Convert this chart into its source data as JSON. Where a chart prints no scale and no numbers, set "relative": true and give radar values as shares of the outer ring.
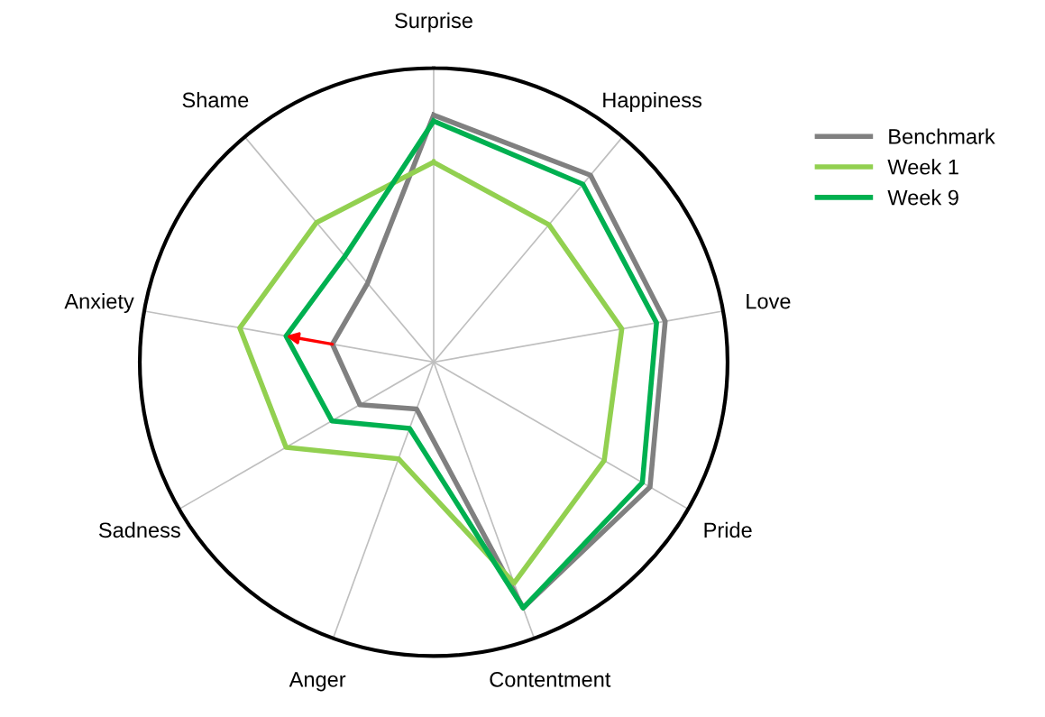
{
  "chart_data": {
    "type": "radar",
    "relative": true,
    "categories": [
      "Surprise",
      "Happiness",
      "Love",
      "Pride",
      "Contentment",
      "Anger",
      "Sadness",
      "Anxiety",
      "Shame"
    ],
    "series": [
      {
        "name": "Benchmark",
        "color": "#808080",
        "values": [
          0.84,
          0.83,
          0.8,
          0.85,
          0.89,
          0.17,
          0.29,
          0.35,
          0.35
        ]
      },
      {
        "name": "Week 1",
        "color": "#92d050",
        "values": [
          0.68,
          0.61,
          0.65,
          0.67,
          0.8,
          0.35,
          0.58,
          0.67,
          0.62
        ]
      },
      {
        "name": "Week 9",
        "color": "#00b050",
        "values": [
          0.82,
          0.79,
          0.77,
          0.82,
          0.89,
          0.24,
          0.4,
          0.51,
          0.47
        ]
      }
    ],
    "grid": "x",
    "legend": "top right",
    "marker": "none",
    "line_style": "solid"
  }
}
